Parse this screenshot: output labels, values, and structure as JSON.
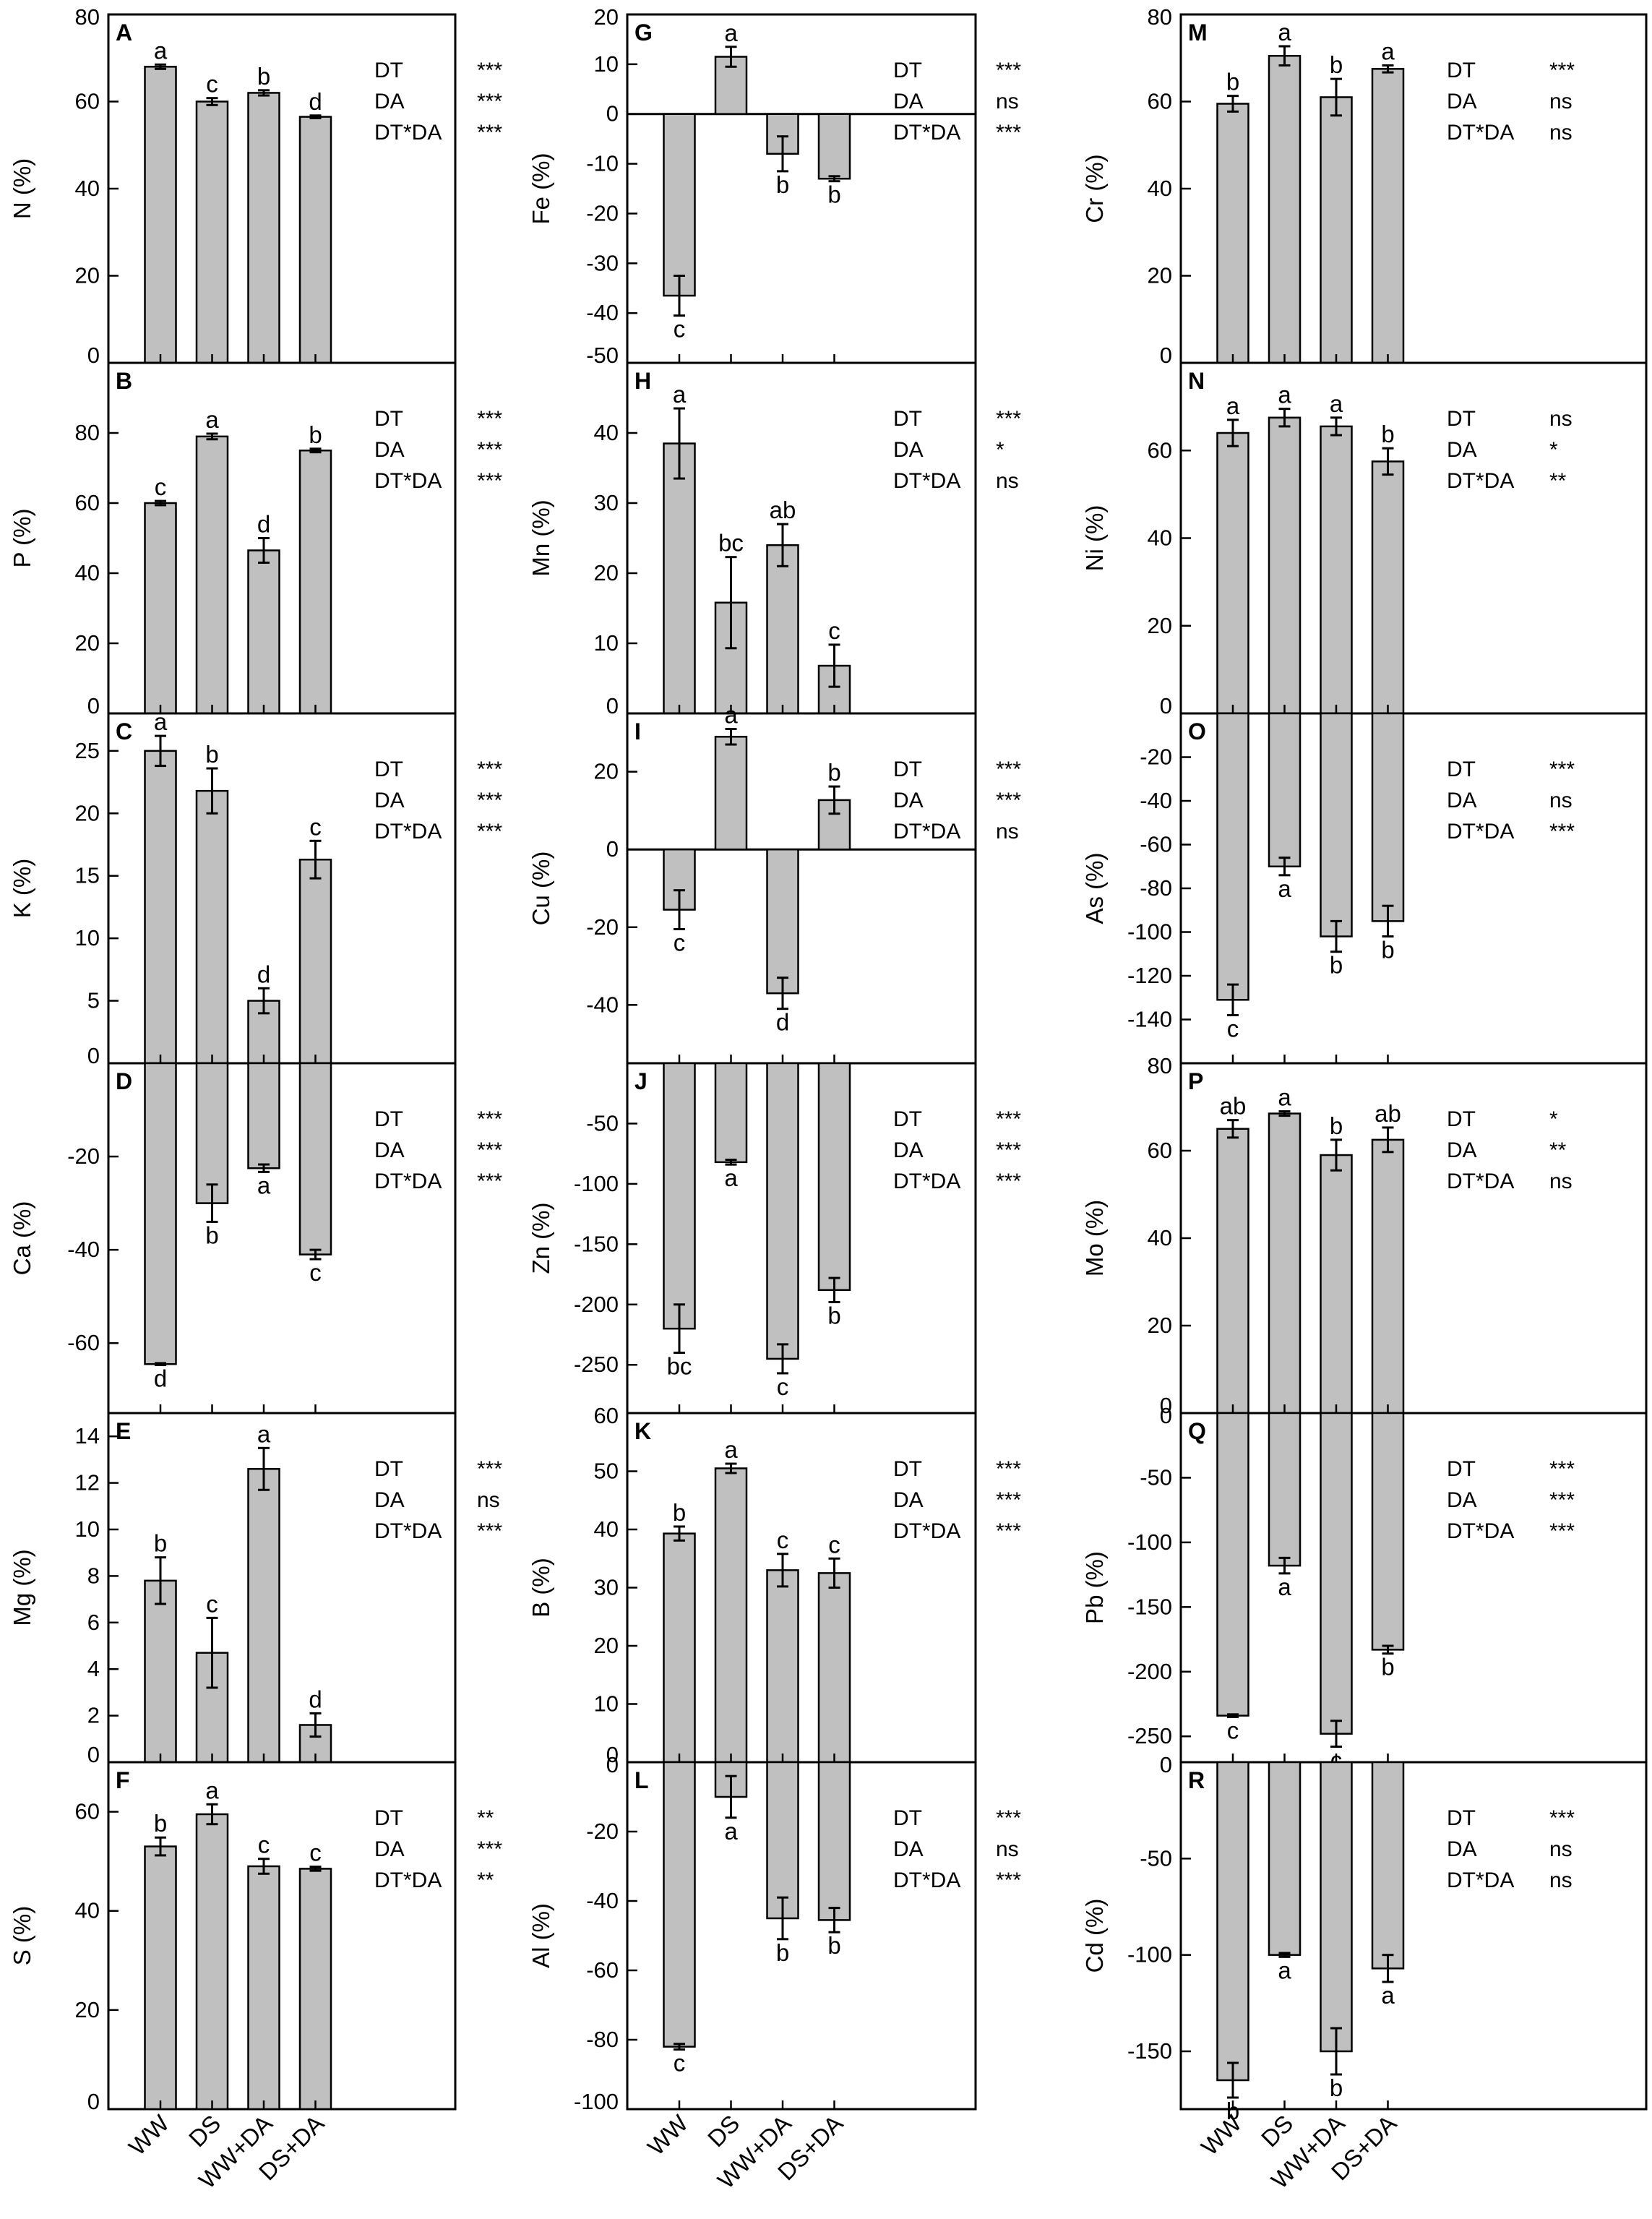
{
  "chart_data": {
    "type": "bar",
    "categories": [
      "WW",
      "DS",
      "WW+DA",
      "DS+DA"
    ],
    "stats_terms": [
      "DT",
      "DA",
      "DT*DA"
    ],
    "panels": [
      {
        "letter": "A",
        "ylabel": "N (%)",
        "ylim": [
          0,
          80
        ],
        "ticks": [
          0,
          20,
          40,
          60,
          80
        ],
        "tick_labels": [
          "0",
          "20",
          "40",
          "60",
          "80"
        ],
        "values": [
          68,
          60,
          62,
          56.5
        ],
        "errors": [
          0.5,
          0.8,
          0.6,
          0.3
        ],
        "letters": [
          "a",
          "c",
          "b",
          "d"
        ],
        "stats": [
          "***",
          "***",
          "***"
        ]
      },
      {
        "letter": "B",
        "ylabel": "P (%)",
        "ylim": [
          0,
          100
        ],
        "ticks": [
          0,
          20,
          40,
          60,
          80
        ],
        "tick_labels": [
          "0",
          "20",
          "40",
          "60",
          "80"
        ],
        "values": [
          60,
          79,
          46.5,
          75
        ],
        "errors": [
          0.6,
          0.8,
          3.5,
          0.5
        ],
        "letters": [
          "c",
          "a",
          "d",
          "b"
        ],
        "stats": [
          "***",
          "***",
          "***"
        ]
      },
      {
        "letter": "C",
        "ylabel": "K (%)",
        "ylim": [
          0,
          28
        ],
        "ticks": [
          0,
          5,
          10,
          15,
          20,
          25
        ],
        "tick_labels": [
          "0",
          "5",
          "10",
          "15",
          "20",
          "25"
        ],
        "values": [
          25,
          21.8,
          5,
          16.3
        ],
        "errors": [
          1.2,
          1.8,
          1.0,
          1.5
        ],
        "letters": [
          "a",
          "b",
          "d",
          "c"
        ],
        "stats": [
          "***",
          "***",
          "***"
        ]
      },
      {
        "letter": "D",
        "ylabel": "Ca (%)",
        "ylim": [
          -75,
          0
        ],
        "ticks": [
          -60,
          -40,
          -20
        ],
        "tick_labels": [
          "-60",
          "-40",
          "-20"
        ],
        "values": [
          -64.5,
          -30,
          -22.5,
          -41
        ],
        "errors": [
          0.2,
          4.0,
          0.8,
          1.0
        ],
        "letters": [
          "d",
          "b",
          "a",
          "c"
        ],
        "stats": [
          "***",
          "***",
          "***"
        ]
      },
      {
        "letter": "E",
        "ylabel": "Mg (%)",
        "ylim": [
          0,
          15
        ],
        "ticks": [
          0,
          2,
          4,
          6,
          8,
          10,
          12,
          14
        ],
        "tick_labels": [
          "0",
          "2",
          "4",
          "6",
          "8",
          "10",
          "12",
          "14"
        ],
        "values": [
          7.8,
          4.7,
          12.6,
          1.6
        ],
        "errors": [
          1.0,
          1.5,
          0.9,
          0.5
        ],
        "letters": [
          "b",
          "c",
          "a",
          "d"
        ],
        "stats": [
          "***",
          "ns",
          "***"
        ]
      },
      {
        "letter": "F",
        "ylabel": "S (%)",
        "ylim": [
          0,
          70
        ],
        "ticks": [
          0,
          20,
          40,
          60
        ],
        "tick_labels": [
          "0",
          "20",
          "40",
          "60"
        ],
        "values": [
          53,
          59.5,
          49,
          48.5
        ],
        "errors": [
          1.8,
          2.0,
          1.5,
          0.4
        ],
        "letters": [
          "b",
          "a",
          "c",
          "c"
        ],
        "stats": [
          "**",
          "***",
          "**"
        ]
      },
      {
        "letter": "G",
        "ylabel": "Fe (%)",
        "ylim": [
          -50,
          20
        ],
        "ticks": [
          -50,
          -40,
          -30,
          -20,
          -10,
          0,
          10,
          20
        ],
        "tick_labels": [
          "-50",
          "-40",
          "-30",
          "-20",
          "-10",
          "0",
          "10",
          "20"
        ],
        "values": [
          -36.5,
          11.5,
          -8,
          -13
        ],
        "errors": [
          4.0,
          2.0,
          3.5,
          0.5
        ],
        "letters": [
          "c",
          "a",
          "b",
          "b"
        ],
        "stats": [
          "***",
          "ns",
          "***"
        ]
      },
      {
        "letter": "H",
        "ylabel": "Mn (%)",
        "ylim": [
          0,
          50
        ],
        "ticks": [
          0,
          10,
          20,
          30,
          40
        ],
        "tick_labels": [
          "0",
          "10",
          "20",
          "30",
          "40"
        ],
        "values": [
          38.5,
          15.8,
          24,
          6.8
        ],
        "errors": [
          5.0,
          6.5,
          3.0,
          3.0
        ],
        "letters": [
          "a",
          "bc",
          "ab",
          "c"
        ],
        "stats": [
          "***",
          "*",
          "ns"
        ]
      },
      {
        "letter": "I",
        "ylabel": "Cu (%)",
        "ylim": [
          -55,
          35
        ],
        "ticks": [
          -40,
          -20,
          0,
          20
        ],
        "tick_labels": [
          "-40",
          "-20",
          "0",
          "20"
        ],
        "values": [
          -15.5,
          29,
          -37,
          12.7
        ],
        "errors": [
          5.0,
          2.0,
          4.0,
          3.5
        ],
        "letters": [
          "c",
          "a",
          "d",
          "b"
        ],
        "stats": [
          "***",
          "***",
          "ns"
        ]
      },
      {
        "letter": "J",
        "ylabel": "Zn (%)",
        "ylim": [
          -290,
          0
        ],
        "ticks": [
          -250,
          -200,
          -150,
          -100,
          -50
        ],
        "tick_labels": [
          "-250",
          "-200",
          "-150",
          "-100",
          "-50"
        ],
        "values": [
          -220,
          -82,
          -245,
          -188
        ],
        "errors": [
          20,
          2,
          12,
          10
        ],
        "letters": [
          "bc",
          "a",
          "c",
          "b"
        ],
        "stats": [
          "***",
          "***",
          "***"
        ]
      },
      {
        "letter": "K",
        "ylabel": "B (%)",
        "ylim": [
          0,
          60
        ],
        "ticks": [
          0,
          10,
          20,
          30,
          40,
          50,
          60
        ],
        "tick_labels": [
          "0",
          "10",
          "20",
          "30",
          "40",
          "50",
          "60"
        ],
        "values": [
          39.3,
          50.5,
          33,
          32.5
        ],
        "errors": [
          1.2,
          0.8,
          2.8,
          2.5
        ],
        "letters": [
          "b",
          "a",
          "c",
          "c"
        ],
        "stats": [
          "***",
          "***",
          "***"
        ]
      },
      {
        "letter": "L",
        "ylabel": "Al (%)",
        "ylim": [
          -100,
          0
        ],
        "ticks": [
          -100,
          -80,
          -60,
          -40,
          -20,
          0
        ],
        "tick_labels": [
          "-100",
          "-80",
          "-60",
          "-40",
          "-20",
          "0"
        ],
        "values": [
          -82,
          -10,
          -45,
          -45.5
        ],
        "errors": [
          0.8,
          6.0,
          6.0,
          3.5
        ],
        "letters": [
          "c",
          "a",
          "b",
          "b"
        ],
        "stats": [
          "***",
          "ns",
          "***"
        ]
      },
      {
        "letter": "M",
        "ylabel": "Cr (%)",
        "ylim": [
          0,
          80
        ],
        "ticks": [
          0,
          20,
          40,
          60,
          80
        ],
        "tick_labels": [
          "0",
          "20",
          "40",
          "60",
          "80"
        ],
        "values": [
          59.5,
          70.5,
          61,
          67.5
        ],
        "errors": [
          1.8,
          2.2,
          4.2,
          0.8
        ],
        "letters": [
          "b",
          "a",
          "b",
          "a"
        ],
        "stats": [
          "***",
          "ns",
          "ns"
        ]
      },
      {
        "letter": "N",
        "ylabel": "Ni (%)",
        "ylim": [
          0,
          80
        ],
        "ticks": [
          0,
          20,
          40,
          60
        ],
        "tick_labels": [
          "0",
          "20",
          "40",
          "60"
        ],
        "values": [
          64,
          67.5,
          65.5,
          57.5
        ],
        "errors": [
          3.0,
          2.0,
          2.0,
          3.0
        ],
        "letters": [
          "a",
          "a",
          "a",
          "b"
        ],
        "stats": [
          "ns",
          "*",
          "**"
        ]
      },
      {
        "letter": "O",
        "ylabel": "As (%)",
        "ylim": [
          -160,
          0
        ],
        "ticks": [
          -140,
          -120,
          -100,
          -80,
          -60,
          -40,
          -20
        ],
        "tick_labels": [
          "-140",
          "-120",
          "-100",
          "-80",
          "-60",
          "-40",
          "-20"
        ],
        "values": [
          -131,
          -70,
          -102,
          -95
        ],
        "errors": [
          7,
          4,
          7,
          7
        ],
        "letters": [
          "c",
          "a",
          "b",
          "b"
        ],
        "stats": [
          "***",
          "ns",
          "***"
        ]
      },
      {
        "letter": "P",
        "ylabel": "Mo (%)",
        "ylim": [
          0,
          80
        ],
        "ticks": [
          0,
          20,
          40,
          60,
          80
        ],
        "tick_labels": [
          "0",
          "20",
          "40",
          "60",
          "80"
        ],
        "values": [
          65,
          68.5,
          59,
          62.5
        ],
        "errors": [
          2.0,
          0.5,
          3.5,
          2.8
        ],
        "letters": [
          "ab",
          "a",
          "b",
          "ab"
        ],
        "stats": [
          "*",
          "**",
          "ns"
        ]
      },
      {
        "letter": "Q",
        "ylabel": "Pb (%)",
        "ylim": [
          -270,
          0
        ],
        "ticks": [
          -250,
          -200,
          -150,
          -100,
          -50,
          0
        ],
        "tick_labels": [
          "-250",
          "-200",
          "-150",
          "-100",
          "-50",
          "0"
        ],
        "values": [
          -234,
          -118,
          -248,
          -183
        ],
        "errors": [
          1,
          6,
          10,
          3
        ],
        "letters": [
          "c",
          "a",
          "c",
          "b"
        ],
        "stats": [
          "***",
          "***",
          "***"
        ]
      },
      {
        "letter": "R",
        "ylabel": "Cd (%)",
        "ylim": [
          -180,
          0
        ],
        "ticks": [
          -150,
          -100,
          -50,
          0
        ],
        "tick_labels": [
          "-150",
          "-100",
          "-50",
          "0"
        ],
        "values": [
          -165,
          -100,
          -150,
          -107
        ],
        "errors": [
          9,
          1,
          12,
          7
        ],
        "letters": [
          "b",
          "a",
          "b",
          "a"
        ],
        "stats": [
          "***",
          "ns",
          "ns"
        ]
      }
    ]
  }
}
